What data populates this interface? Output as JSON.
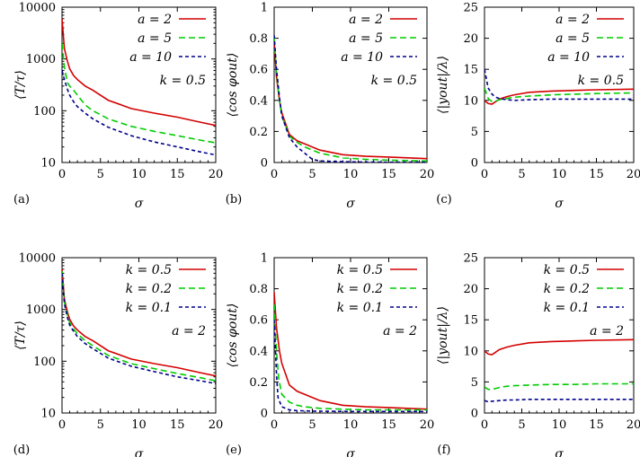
{
  "chart_data": [
    {
      "panel": "(a)",
      "type": "line",
      "yscale": "log",
      "xlabel": "σ",
      "ylabel": "⟨T/τ⟩",
      "xlim": [
        0,
        20
      ],
      "ylim": [
        10,
        10000
      ],
      "xticks": [
        "0",
        "5",
        "10",
        "15",
        "20"
      ],
      "yticks": [
        "10",
        "100",
        "1000",
        "10000"
      ],
      "note": "k = 0.5",
      "series": [
        {
          "name": "a = 2",
          "color": "#d40000",
          "dash": "",
          "x": [
            0,
            0.3,
            0.7,
            1,
            1.5,
            2,
            3,
            4,
            6,
            9,
            12,
            15,
            18,
            20
          ],
          "y": [
            6000,
            1600,
            900,
            650,
            480,
            400,
            300,
            250,
            160,
            110,
            90,
            75,
            60,
            52
          ]
        },
        {
          "name": "a = 5",
          "color": "#00cc00",
          "dash": "7,4",
          "x": [
            0,
            0.3,
            0.7,
            1,
            1.5,
            2,
            3,
            4,
            6,
            9,
            12,
            15,
            18,
            20
          ],
          "y": [
            2000,
            700,
            350,
            300,
            250,
            200,
            130,
            100,
            70,
            50,
            40,
            33,
            27,
            24
          ]
        },
        {
          "name": "a = 10",
          "color": "#00008b",
          "dash": "4,3",
          "x": [
            0,
            0.3,
            0.7,
            1,
            1.5,
            2,
            3,
            4,
            6,
            9,
            12,
            15,
            18,
            20
          ],
          "y": [
            600,
            400,
            260,
            200,
            150,
            120,
            90,
            70,
            48,
            33,
            25,
            20,
            16,
            14
          ]
        }
      ]
    },
    {
      "panel": "(b)",
      "type": "line",
      "yscale": "linear",
      "xlabel": "σ",
      "ylabel": "⟨cos φout⟩",
      "xlim": [
        0,
        20
      ],
      "ylim": [
        0,
        1
      ],
      "xticks": [
        "0",
        "5",
        "10",
        "15",
        "20"
      ],
      "yticks": [
        "0",
        "0.2",
        "0.4",
        "0.6",
        "0.8",
        "1"
      ],
      "note": "k = 0.5",
      "series": [
        {
          "name": "a = 2",
          "color": "#d40000",
          "dash": "",
          "x": [
            0,
            0.3,
            0.7,
            1,
            2,
            3,
            4,
            6,
            9,
            12,
            15,
            20
          ],
          "y": [
            0.78,
            0.55,
            0.4,
            0.32,
            0.18,
            0.14,
            0.12,
            0.08,
            0.05,
            0.04,
            0.035,
            0.025
          ]
        },
        {
          "name": "a = 5",
          "color": "#00cc00",
          "dash": "7,4",
          "x": [
            0,
            0.3,
            0.7,
            1,
            2,
            3,
            4,
            6,
            9,
            12,
            15,
            20
          ],
          "y": [
            0.8,
            0.58,
            0.4,
            0.3,
            0.17,
            0.13,
            0.1,
            0.06,
            0.03,
            0.02,
            0.015,
            0.01
          ]
        },
        {
          "name": "a = 10",
          "color": "#00008b",
          "dash": "4,3",
          "x": [
            0,
            0.3,
            0.7,
            1,
            2,
            3,
            4,
            5,
            6,
            9,
            12,
            15,
            20
          ],
          "y": [
            0.82,
            0.6,
            0.42,
            0.3,
            0.16,
            0.1,
            0.06,
            0.02,
            0.01,
            0.005,
            0.003,
            0.002,
            0.002
          ]
        }
      ]
    },
    {
      "panel": "(c)",
      "type": "line",
      "yscale": "linear",
      "xlabel": "σ",
      "ylabel": "⟨|yout|/λ⟩",
      "xlim": [
        0,
        20
      ],
      "ylim": [
        0,
        25
      ],
      "xticks": [
        "0",
        "5",
        "10",
        "15",
        "20"
      ],
      "yticks": [
        "0",
        "5",
        "10",
        "15",
        "20",
        "25"
      ],
      "note": "k = 0.5",
      "series": [
        {
          "name": "a = 2",
          "color": "#d40000",
          "dash": "",
          "x": [
            0,
            0.5,
            1,
            1.5,
            2,
            3,
            4,
            6,
            9,
            12,
            15,
            20
          ],
          "y": [
            10,
            9.5,
            9.4,
            9.8,
            10.2,
            10.6,
            10.9,
            11.3,
            11.5,
            11.6,
            11.7,
            11.8
          ]
        },
        {
          "name": "a = 5",
          "color": "#00cc00",
          "dash": "7,4",
          "x": [
            0,
            0.5,
            1,
            1.5,
            2,
            3,
            4,
            6,
            9,
            12,
            15,
            20
          ],
          "y": [
            12,
            10.3,
            9.8,
            9.9,
            10.1,
            10.3,
            10.5,
            10.7,
            10.9,
            11,
            11.1,
            11.2
          ]
        },
        {
          "name": "a = 10",
          "color": "#00008b",
          "dash": "4,3",
          "x": [
            0,
            0.5,
            1,
            1.5,
            2,
            3,
            4,
            6,
            9,
            12,
            15,
            20
          ],
          "y": [
            15,
            12,
            11,
            10.5,
            10.3,
            10.1,
            10,
            10.1,
            10.2,
            10.2,
            10.2,
            10.2
          ]
        }
      ]
    },
    {
      "panel": "(d)",
      "type": "line",
      "yscale": "log",
      "xlabel": "σ",
      "ylabel": "⟨T/τ⟩",
      "xlim": [
        0,
        20
      ],
      "ylim": [
        10,
        10000
      ],
      "xticks": [
        "0",
        "5",
        "10",
        "15",
        "20"
      ],
      "yticks": [
        "10",
        "100",
        "1000",
        "10000"
      ],
      "note": "a = 2",
      "series": [
        {
          "name": "k = 0.5",
          "color": "#d40000",
          "dash": "",
          "x": [
            0,
            0.3,
            0.7,
            1,
            1.5,
            2,
            3,
            4,
            6,
            9,
            12,
            15,
            18,
            20
          ],
          "y": [
            6000,
            1600,
            900,
            650,
            480,
            400,
            300,
            250,
            160,
            110,
            90,
            75,
            60,
            52
          ]
        },
        {
          "name": "k = 0.2",
          "color": "#00cc00",
          "dash": "7,4",
          "x": [
            0,
            0.3,
            0.7,
            1,
            1.5,
            2,
            3,
            4,
            6,
            9,
            12,
            15,
            18,
            20
          ],
          "y": [
            5500,
            1400,
            800,
            560,
            420,
            340,
            250,
            200,
            130,
            90,
            72,
            58,
            48,
            42
          ]
        },
        {
          "name": "k = 0.1",
          "color": "#00008b",
          "dash": "4,3",
          "x": [
            0,
            0.3,
            0.7,
            1,
            1.5,
            2,
            3,
            4,
            6,
            9,
            12,
            15,
            18,
            20
          ],
          "y": [
            5000,
            1300,
            700,
            500,
            380,
            300,
            220,
            175,
            115,
            80,
            63,
            50,
            42,
            37
          ]
        }
      ]
    },
    {
      "panel": "(e)",
      "type": "line",
      "yscale": "linear",
      "xlabel": "σ",
      "ylabel": "⟨cos φout⟩",
      "xlim": [
        0,
        20
      ],
      "ylim": [
        0,
        1
      ],
      "xticks": [
        "0",
        "5",
        "10",
        "15",
        "20"
      ],
      "yticks": [
        "0",
        "0.2",
        "0.4",
        "0.6",
        "0.8",
        "1"
      ],
      "note": "a = 2",
      "series": [
        {
          "name": "k = 0.5",
          "color": "#d40000",
          "dash": "",
          "x": [
            0,
            0.3,
            0.7,
            1,
            2,
            3,
            4,
            6,
            9,
            12,
            15,
            20
          ],
          "y": [
            0.78,
            0.55,
            0.4,
            0.32,
            0.18,
            0.14,
            0.12,
            0.08,
            0.05,
            0.04,
            0.035,
            0.025
          ]
        },
        {
          "name": "k = 0.2",
          "color": "#00cc00",
          "dash": "7,4",
          "x": [
            0,
            0.3,
            0.6,
            1,
            2,
            3,
            4,
            6,
            9,
            12,
            15,
            20
          ],
          "y": [
            0.7,
            0.4,
            0.22,
            0.12,
            0.07,
            0.05,
            0.04,
            0.03,
            0.025,
            0.02,
            0.02,
            0.02
          ]
        },
        {
          "name": "k = 0.1",
          "color": "#00008b",
          "dash": "4,3",
          "x": [
            0,
            0.3,
            0.5,
            1,
            2,
            3,
            5,
            10,
            15,
            20
          ],
          "y": [
            0.6,
            0.25,
            0.1,
            0.04,
            0.02,
            0.015,
            0.012,
            0.01,
            0.01,
            0.01
          ]
        }
      ]
    },
    {
      "panel": "(f)",
      "type": "line",
      "yscale": "linear",
      "xlabel": "σ",
      "ylabel": "⟨|yout|/λ⟩",
      "xlim": [
        0,
        20
      ],
      "ylim": [
        0,
        25
      ],
      "xticks": [
        "0",
        "5",
        "10",
        "15",
        "20"
      ],
      "yticks": [
        "0",
        "5",
        "10",
        "15",
        "20",
        "25"
      ],
      "note": "a = 2",
      "series": [
        {
          "name": "k = 0.5",
          "color": "#d40000",
          "dash": "",
          "x": [
            0,
            0.5,
            1,
            1.5,
            2,
            3,
            4,
            6,
            9,
            12,
            15,
            20
          ],
          "y": [
            10,
            9.5,
            9.4,
            9.8,
            10.2,
            10.6,
            10.9,
            11.3,
            11.5,
            11.6,
            11.7,
            11.8
          ]
        },
        {
          "name": "k = 0.2",
          "color": "#00cc00",
          "dash": "7,4",
          "x": [
            0,
            0.5,
            1,
            2,
            3,
            4,
            6,
            9,
            12,
            15,
            20
          ],
          "y": [
            4.2,
            3.8,
            3.8,
            4.1,
            4.3,
            4.4,
            4.5,
            4.6,
            4.6,
            4.7,
            4.7
          ]
        },
        {
          "name": "k = 0.1",
          "color": "#00008b",
          "dash": "4,3",
          "x": [
            0,
            0.5,
            1,
            2,
            3,
            4,
            6,
            9,
            12,
            15,
            20
          ],
          "y": [
            2.0,
            1.8,
            1.9,
            2.0,
            2.1,
            2.1,
            2.2,
            2.2,
            2.2,
            2.2,
            2.2
          ]
        }
      ]
    }
  ]
}
